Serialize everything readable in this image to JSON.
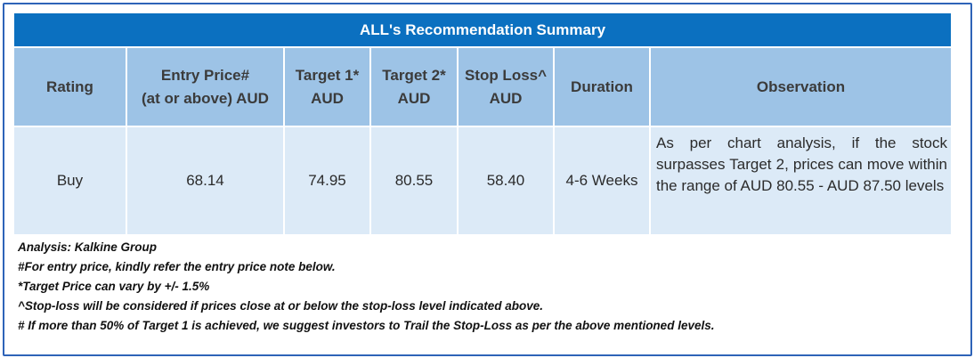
{
  "title": "ALL's Recommendation Summary",
  "headers": [
    "Rating",
    "Entry Price#\n(at or above) AUD",
    "Target 1*\nAUD",
    "Target 2*\nAUD",
    "Stop Loss^\nAUD",
    "Duration",
    "Observation"
  ],
  "row": {
    "rating": "Buy",
    "entry_price": "68.14",
    "target1": "74.95",
    "target2": "80.55",
    "stop_loss": "58.40",
    "duration": "4-6 Weeks",
    "observation": "As per chart analysis, if the stock surpasses Target 2, prices can move within the range of AUD 80.55 - AUD 87.50 levels"
  },
  "notes": [
    "Analysis: Kalkine Group",
    "#For entry price, kindly refer the entry price note below.",
    "*Target Price can vary by +/- 1.5%",
    "^Stop-loss will be considered if prices close at or below the stop-loss level indicated above.",
    "# If more than 50% of Target 1 is achieved, we suggest investors to Trail the Stop-Loss as per the above mentioned levels."
  ]
}
